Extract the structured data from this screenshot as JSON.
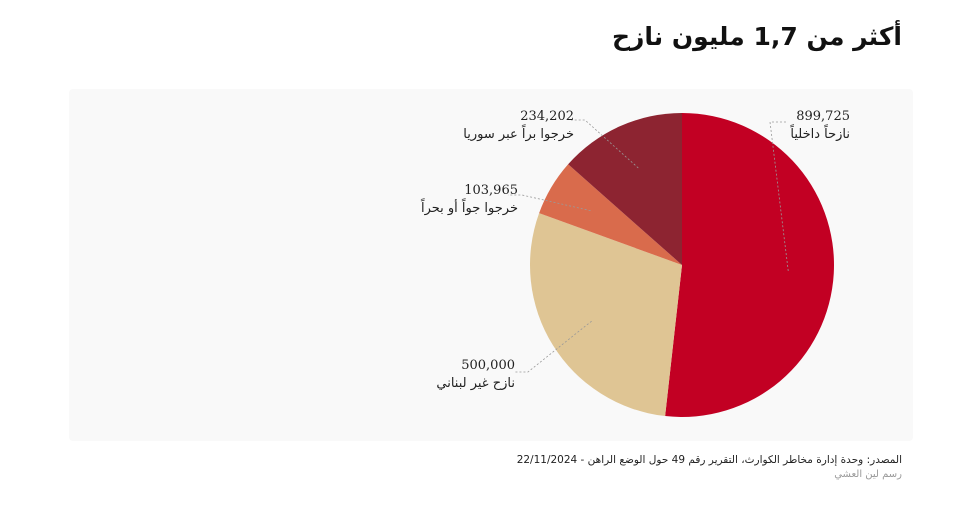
{
  "title": "أكثر من 1,7 مليون نازح",
  "chart_data": {
    "type": "pie",
    "title": "أكثر من 1,7 مليون نازح",
    "start_angle": "top, clockwise",
    "slices": [
      {
        "label": "نازحاً داخلياً",
        "value": 899725,
        "value_text": "899,725",
        "color": "#c20023"
      },
      {
        "label": "نازح غير لبناني",
        "value": 500000,
        "value_text": "500,000",
        "color": "#dfc594"
      },
      {
        "label": "خرجوا جواً أو بحراً",
        "value": 103965,
        "value_text": "103,965",
        "color": "#d96b4c"
      },
      {
        "label": "خرجوا براً عبر سوريا",
        "value": 234202,
        "value_text": "234,202",
        "color": "#8d2431"
      }
    ]
  },
  "footer": {
    "source": "المصدر: وحدة إدارة مخاطر الكوارث، التقرير رقم 49 حول الوضع الراهن - 22/11/2024",
    "credit": "رسم لين العشي"
  }
}
